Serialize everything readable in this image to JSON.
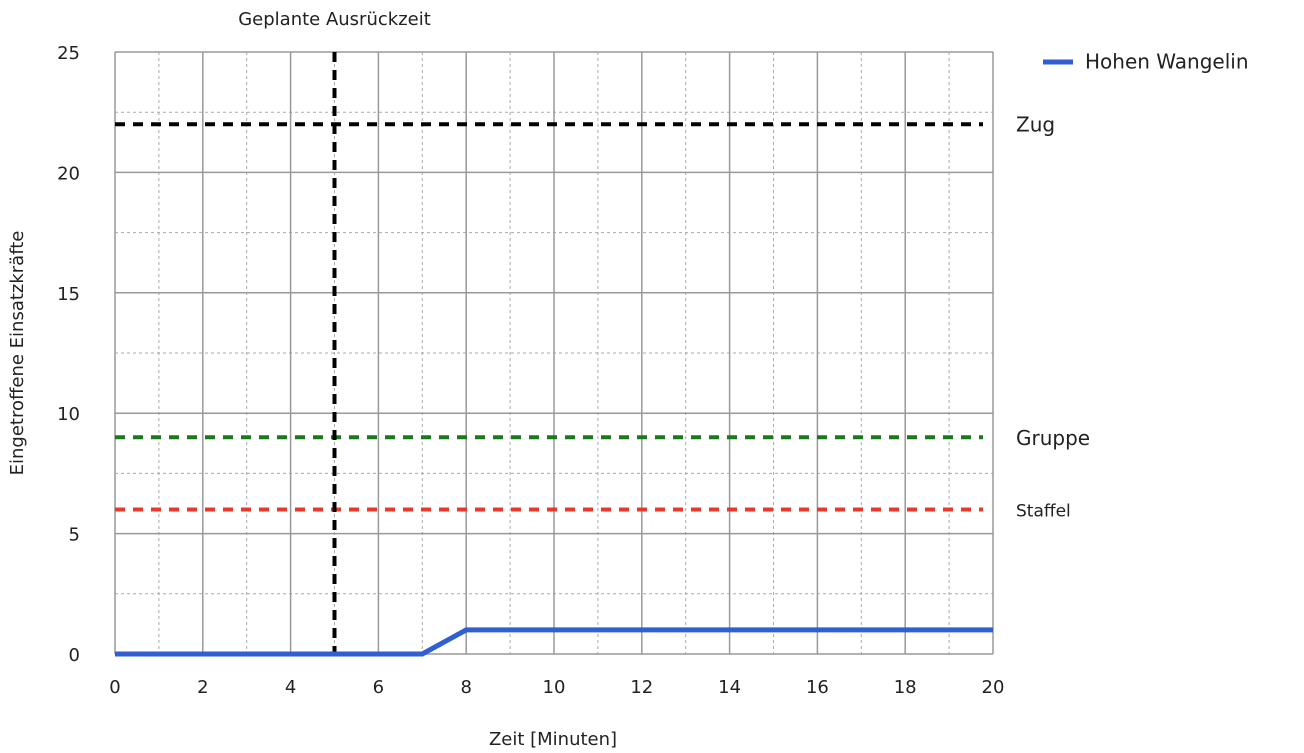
{
  "chart_data": {
    "type": "line",
    "xlabel": "Zeit [Minuten]",
    "ylabel": "Eingetroffene Einsatzkräfte",
    "xlim": [
      0,
      20
    ],
    "xticks": [
      0,
      2,
      4,
      6,
      8,
      10,
      12,
      14,
      16,
      18,
      20
    ],
    "ylim": [
      0,
      25
    ],
    "yticks": [
      0,
      5,
      10,
      15,
      20,
      25
    ],
    "grid": true,
    "legend": "top-right",
    "series": [
      {
        "name": "Hohen Wangelin",
        "color": "#2f5fd0",
        "x": [
          0,
          7,
          8,
          20
        ],
        "values": [
          0,
          0,
          1,
          1
        ]
      }
    ],
    "hlines": [
      {
        "label": "Zug",
        "value": 22,
        "color": "#000000"
      },
      {
        "label": "Gruppe",
        "value": 9,
        "color": "#1a7a1a"
      },
      {
        "label": "Staffel",
        "value": 6,
        "color": "#e8392a"
      }
    ],
    "vline": {
      "label": "Geplante Ausrückzeit",
      "value": 5,
      "color": "#000000"
    }
  }
}
